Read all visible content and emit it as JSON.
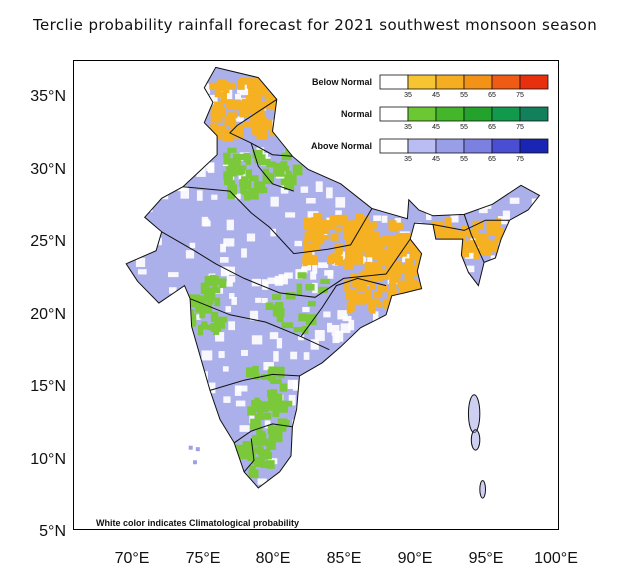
{
  "title": "Terclie probability rainfall forecast for 2021 southwest monsoon  season",
  "footnote": "White color indicates Climatological probability",
  "lat_labels": [
    "35°N",
    "30°N",
    "25°N",
    "20°N",
    "15°N",
    "10°N",
    "5°N"
  ],
  "lon_labels": [
    "70°E",
    "75°E",
    "80°E",
    "85°E",
    "90°E",
    "95°E",
    "100°E"
  ],
  "legend": [
    {
      "label": "Below Normal",
      "colors": [
        "#ffffff",
        "#f7c531",
        "#f5ae22",
        "#f29216",
        "#ef5a14",
        "#e8300f"
      ],
      "ticks": [
        "35",
        "45",
        "55",
        "65",
        "75"
      ]
    },
    {
      "label": "Normal",
      "colors": [
        "#ffffff",
        "#6cc832",
        "#44b62a",
        "#23a32b",
        "#119a4c",
        "#12805a"
      ],
      "ticks": [
        "35",
        "45",
        "55",
        "65",
        "75"
      ]
    },
    {
      "label": "Above Normal",
      "colors": [
        "#ffffff",
        "#b9bdf3",
        "#999ee9",
        "#7c80e0",
        "#4a4ed2",
        "#1b25b4"
      ],
      "ticks": [
        "35",
        "45",
        "55",
        "65",
        "75"
      ]
    }
  ],
  "map": {
    "lon_range": [
      66,
      100
    ],
    "lat_range": [
      5,
      37.5
    ],
    "colors": {
      "below": "#f5b122",
      "normal": "#7bc93a",
      "above": "#9da2e6",
      "border": "#111111"
    }
  }
}
